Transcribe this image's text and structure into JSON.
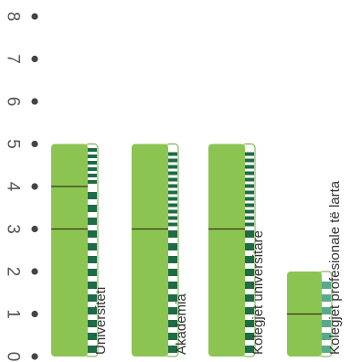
{
  "chart_data": {
    "type": "bar",
    "title": "",
    "xlabel": "",
    "ylabel": "",
    "ylim": [
      0,
      8
    ],
    "yticks": [
      "0",
      "1",
      "2",
      "3",
      "4",
      "5",
      "6",
      "7",
      "8"
    ],
    "categories": [
      "Universiteti",
      "Akademia",
      "Kolegjet universitare",
      "Kolegjet profesionale të larta"
    ],
    "values": [
      5,
      5,
      5,
      2
    ],
    "dividers": [
      [
        3,
        4
      ],
      [
        3
      ],
      [
        3
      ],
      [
        1
      ]
    ],
    "grid": false,
    "legend": "none",
    "colors": {
      "bar": "#8cc452",
      "bar_edge": "#6fa83c",
      "divider": "#3a3a1a",
      "stripe_dark": "#1e6b45",
      "stripe_light": "#5aaa8a",
      "tick_dot": "#444444",
      "tick_text": "#555555"
    }
  }
}
